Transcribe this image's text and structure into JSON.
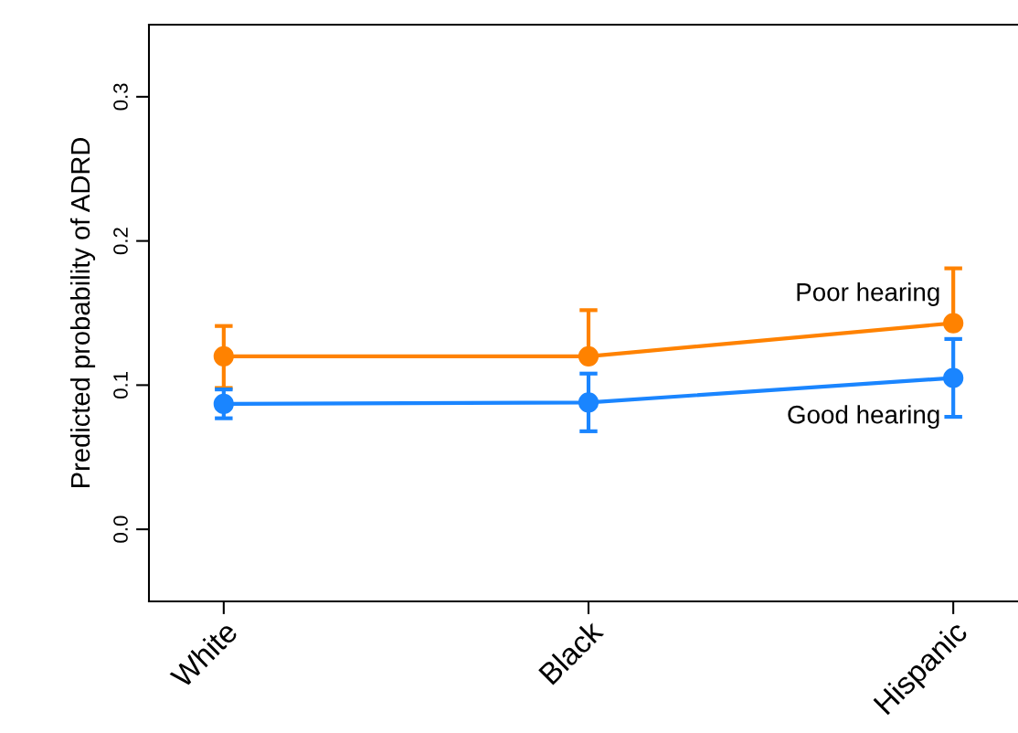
{
  "chart_data": {
    "type": "line",
    "ylabel": "Predicted probability of ADRD",
    "categories": [
      "White",
      "Black",
      "Hispanic"
    ],
    "series": [
      {
        "color": "#ff8200",
        "values": [
          0.12,
          0.12,
          0.143
        ],
        "errors": [
          [
            0.098,
            0.141
          ],
          [
            0.12,
            0.152
          ],
          [
            0.143,
            0.181
          ]
        ]
      },
      {
        "color": "#1a85ff",
        "values": [
          0.087,
          0.088,
          0.105
        ],
        "errors": [
          [
            0.077,
            0.097
          ],
          [
            0.068,
            0.108
          ],
          [
            0.078,
            0.132
          ]
        ]
      }
    ],
    "annotations": [
      {
        "text": "Poor hearing",
        "x": "Hispanic",
        "y": 0.163
      },
      {
        "text": "Good hearing",
        "x": "Hispanic",
        "y": 0.078
      }
    ],
    "ylim": [
      -0.05,
      0.35
    ],
    "yticks": [
      {
        "value": 0,
        "label": "0.0"
      },
      0.1,
      0.2,
      0.3
    ],
    "grid": false,
    "legend": false,
    "marker": "circle",
    "line_style": "solid"
  }
}
